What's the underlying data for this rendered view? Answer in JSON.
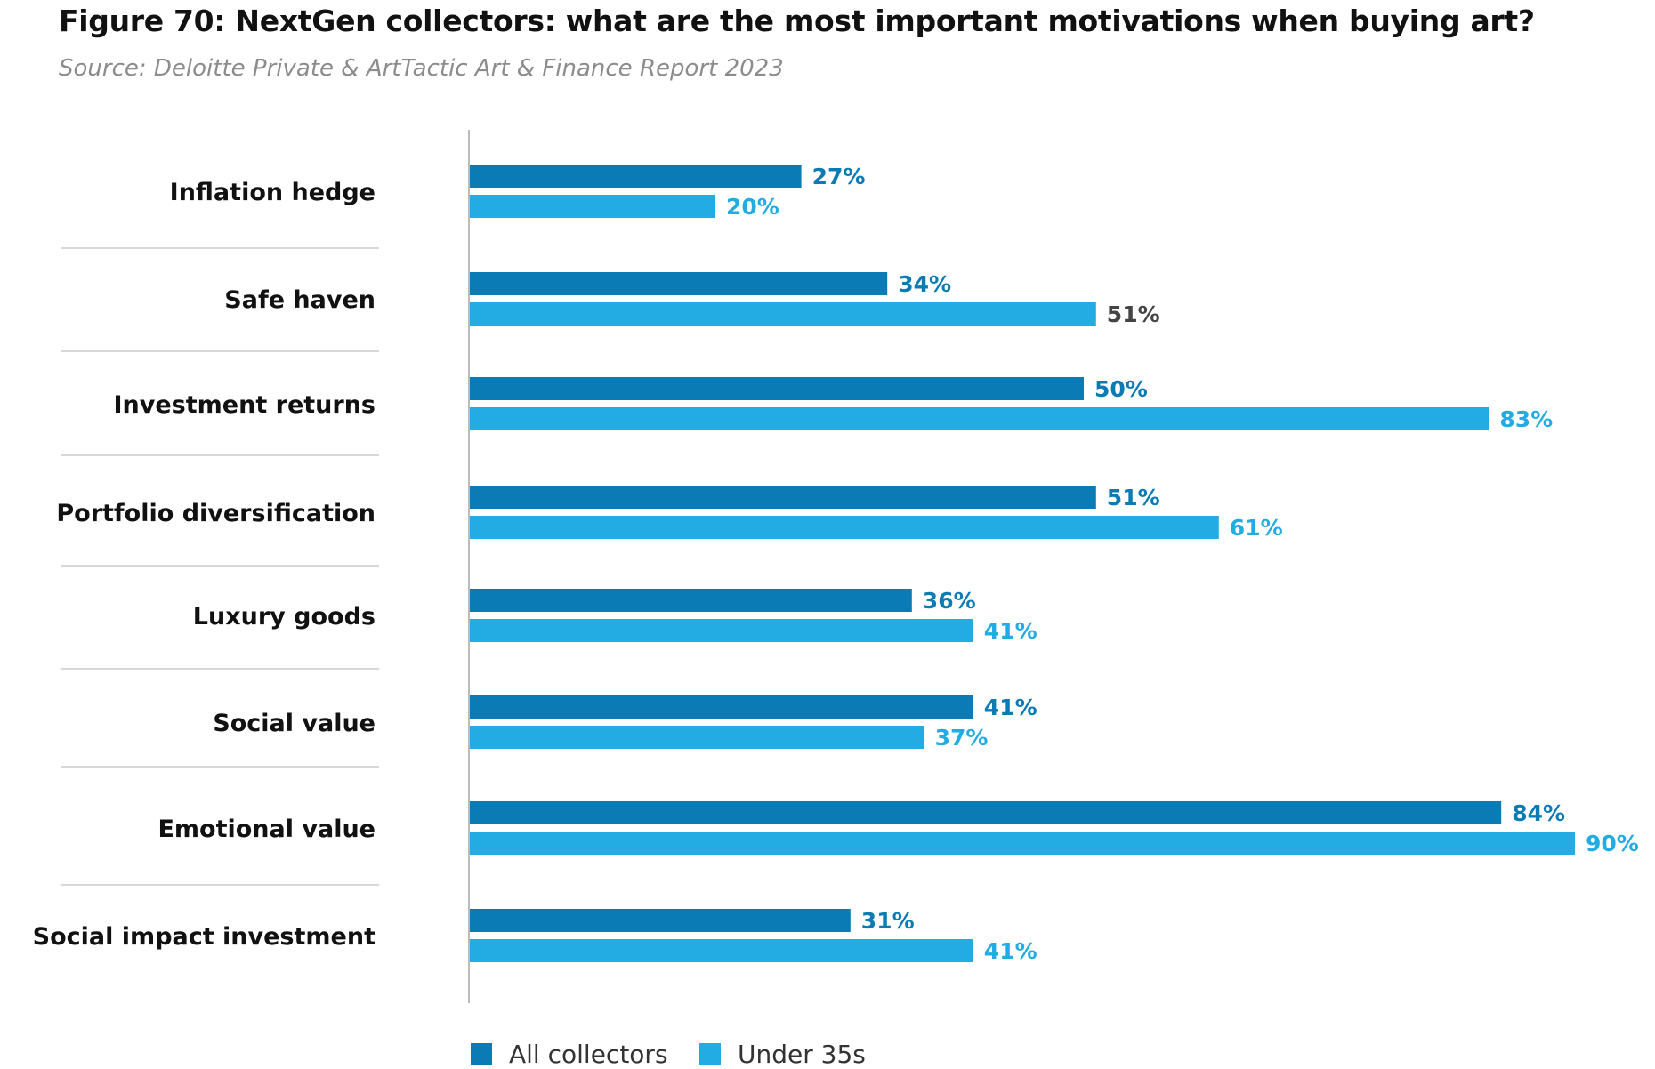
{
  "title": "Figure 70: NextGen collectors: what are the most important motivations when buying art?",
  "subtitle": "Source: Deloitte Private & ArtTactic Art & Finance Report 2023",
  "colors": {
    "all_collectors": "#0b7bb5",
    "under_35s": "#22ace3",
    "label_plain": "#444444",
    "separator": "#cccccc",
    "axis": "#bbbbbb"
  },
  "chart_data": {
    "type": "bar",
    "orientation": "horizontal",
    "categories": [
      "Inflation hedge",
      "Safe haven",
      "Investment returns",
      "Portfolio diversification",
      "Luxury goods",
      "Social value",
      "Emotional value",
      "Social impact investment"
    ],
    "series": [
      {
        "name": "All collectors",
        "values": [
          27,
          34,
          50,
          51,
          36,
          41,
          84,
          31
        ],
        "labels": [
          "27%",
          "34%",
          "50%",
          "51%",
          "36%",
          "41%",
          "84%",
          "31%"
        ]
      },
      {
        "name": "Under 35s",
        "values": [
          20,
          51,
          83,
          61,
          41,
          37,
          90,
          41
        ],
        "labels": [
          "20%",
          "51%",
          "83%",
          "61%",
          "41%",
          "37%",
          "90%",
          "41%"
        ]
      }
    ],
    "unit": "%",
    "xlim": [
      0,
      100
    ],
    "grid": false,
    "legend_position": "bottom"
  }
}
